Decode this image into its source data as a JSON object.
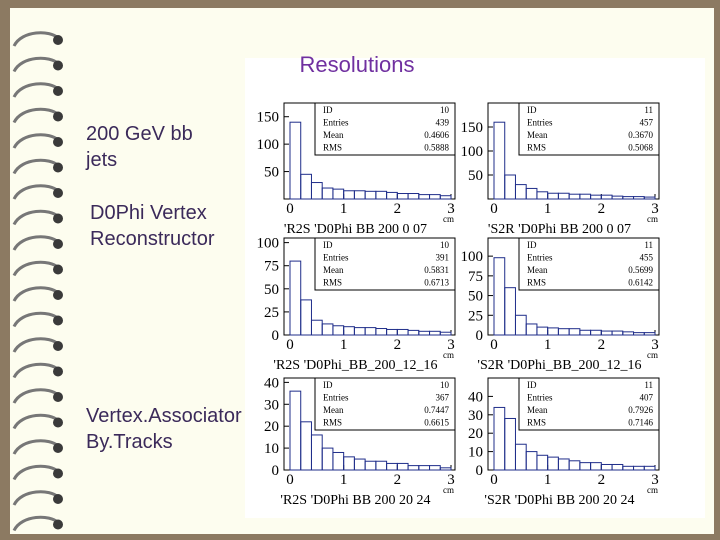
{
  "slide": {
    "title": "Resolutions",
    "bullets": [
      {
        "lines": [
          "200 GeV bb",
          "jets"
        ]
      },
      {
        "lines": [
          "D0Phi Vertex",
          "Reconstructor"
        ]
      },
      {
        "lines": [
          "Vertex.Associator",
          "By.Tracks"
        ]
      }
    ]
  },
  "chart_data": [
    {
      "type": "histogram",
      "title": "'R2S 'D0Phi BB 200 0 07",
      "x_unit": "cm",
      "bins": [
        0,
        0.2,
        0.4,
        0.6,
        0.8,
        1,
        1.2,
        1.4,
        1.6,
        1.8,
        2,
        2.2,
        2.4,
        2.6,
        2.8,
        3
      ],
      "values": [
        140,
        45,
        30,
        20,
        18,
        15,
        15,
        14,
        14,
        12,
        10,
        10,
        8,
        8,
        6
      ],
      "xlim": [
        0,
        3
      ],
      "xticks": [
        0,
        1,
        2,
        3
      ],
      "ylim": [
        0,
        175
      ],
      "yticks": [
        50,
        100,
        150
      ],
      "stats": [
        {
          "label": "ID",
          "value": "10"
        },
        {
          "label": "Entries",
          "value": "439"
        },
        {
          "label": "Mean",
          "value": "0.4606"
        },
        {
          "label": "RMS",
          "value": "0.5888"
        }
      ]
    },
    {
      "type": "histogram",
      "title": "'S2R 'D0Phi BB 200 0 07",
      "x_unit": "cm",
      "bins": [
        0,
        0.2,
        0.4,
        0.6,
        0.8,
        1,
        1.2,
        1.4,
        1.6,
        1.8,
        2,
        2.2,
        2.4,
        2.6,
        2.8,
        3
      ],
      "values": [
        160,
        50,
        30,
        22,
        15,
        12,
        12,
        10,
        10,
        8,
        8,
        6,
        5,
        5,
        4
      ],
      "xlim": [
        0,
        3
      ],
      "xticks": [
        0,
        1,
        2,
        3
      ],
      "ylim": [
        0,
        200
      ],
      "yticks": [
        50,
        100,
        150
      ],
      "stats": [
        {
          "label": "ID",
          "value": "11"
        },
        {
          "label": "Entries",
          "value": "457"
        },
        {
          "label": "Mean",
          "value": "0.3670"
        },
        {
          "label": "RMS",
          "value": "0.5068"
        }
      ]
    },
    {
      "type": "histogram",
      "title": "'R2S 'D0Phi_BB_200_12_16",
      "x_unit": "cm",
      "bins": [
        0,
        0.2,
        0.4,
        0.6,
        0.8,
        1,
        1.2,
        1.4,
        1.6,
        1.8,
        2,
        2.2,
        2.4,
        2.6,
        2.8,
        3
      ],
      "values": [
        80,
        38,
        16,
        12,
        10,
        9,
        8,
        8,
        7,
        6,
        6,
        5,
        4,
        4,
        3
      ],
      "xlim": [
        0,
        3
      ],
      "xticks": [
        0,
        1,
        2,
        3
      ],
      "ylim": [
        0,
        105
      ],
      "yticks": [
        0,
        25,
        50,
        75,
        100
      ],
      "stats": [
        {
          "label": "ID",
          "value": "10"
        },
        {
          "label": "Entries",
          "value": "391"
        },
        {
          "label": "Mean",
          "value": "0.5831"
        },
        {
          "label": "RMS",
          "value": "0.6713"
        }
      ]
    },
    {
      "type": "histogram",
      "title": "'S2R 'D0Phi_BB_200_12_16",
      "x_unit": "cm",
      "bins": [
        0,
        0.2,
        0.4,
        0.6,
        0.8,
        1,
        1.2,
        1.4,
        1.6,
        1.8,
        2,
        2.2,
        2.4,
        2.6,
        2.8,
        3
      ],
      "values": [
        98,
        60,
        25,
        14,
        10,
        9,
        8,
        8,
        6,
        6,
        5,
        5,
        4,
        3,
        3
      ],
      "xlim": [
        0,
        3
      ],
      "xticks": [
        0,
        1,
        2,
        3
      ],
      "ylim": [
        0,
        123
      ],
      "yticks": [
        0,
        25,
        50,
        75,
        100
      ],
      "stats": [
        {
          "label": "ID",
          "value": "11"
        },
        {
          "label": "Entries",
          "value": "455"
        },
        {
          "label": "Mean",
          "value": "0.5699"
        },
        {
          "label": "RMS",
          "value": "0.6142"
        }
      ]
    },
    {
      "type": "histogram",
      "title": "'R2S 'D0Phi BB 200 20 24",
      "x_unit": "cm",
      "bins": [
        0,
        0.2,
        0.4,
        0.6,
        0.8,
        1,
        1.2,
        1.4,
        1.6,
        1.8,
        2,
        2.2,
        2.4,
        2.6,
        2.8,
        3
      ],
      "values": [
        36,
        22,
        16,
        10,
        8,
        6,
        5,
        4,
        4,
        3,
        3,
        2,
        2,
        2,
        1
      ],
      "xlim": [
        0,
        3
      ],
      "xticks": [
        0,
        1,
        2,
        3
      ],
      "ylim": [
        0,
        42
      ],
      "yticks": [
        0,
        10,
        20,
        30,
        40
      ],
      "stats": [
        {
          "label": "ID",
          "value": "10"
        },
        {
          "label": "Entries",
          "value": "367"
        },
        {
          "label": "Mean",
          "value": "0.7447"
        },
        {
          "label": "RMS",
          "value": "0.6615"
        }
      ]
    },
    {
      "type": "histogram",
      "title": "'S2R 'D0Phi BB 200 20 24",
      "x_unit": "cm",
      "bins": [
        0,
        0.2,
        0.4,
        0.6,
        0.8,
        1,
        1.2,
        1.4,
        1.6,
        1.8,
        2,
        2.2,
        2.4,
        2.6,
        2.8,
        3
      ],
      "values": [
        34,
        28,
        14,
        10,
        8,
        7,
        6,
        5,
        4,
        4,
        3,
        3,
        2,
        2,
        2
      ],
      "xlim": [
        0,
        3
      ],
      "xticks": [
        0,
        1,
        2,
        3
      ],
      "ylim": [
        0,
        50
      ],
      "yticks": [
        0,
        10,
        20,
        30,
        40
      ],
      "stats": [
        {
          "label": "ID",
          "value": "11"
        },
        {
          "label": "Entries",
          "value": "407"
        },
        {
          "label": "Mean",
          "value": "0.7926"
        },
        {
          "label": "RMS",
          "value": "0.7146"
        }
      ]
    }
  ]
}
